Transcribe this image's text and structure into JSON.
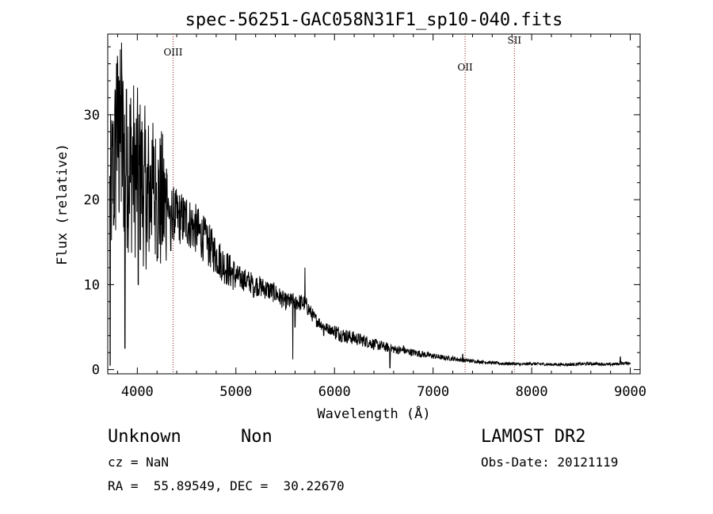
{
  "chart_data": {
    "type": "line",
    "title": "spec-56251-GAC058N31F1_sp10-040.fits",
    "xlabel": "Wavelength (Å)",
    "ylabel": "Flux (relative)",
    "xlim": [
      3700,
      9100
    ],
    "ylim": [
      -0.5,
      39.5
    ],
    "xticks": [
      4000,
      5000,
      6000,
      7000,
      8000,
      9000
    ],
    "yticks": [
      0,
      10,
      20,
      30
    ],
    "grid": false,
    "lines": [
      {
        "name": "OIII",
        "x": 4363,
        "label_y": 37
      },
      {
        "name": "OII",
        "x": 7325,
        "label_y": 35.2
      },
      {
        "name": "SII",
        "x": 7825,
        "label_y": 38.4
      }
    ],
    "continuum_knots": [
      [
        3720,
        20
      ],
      [
        3800,
        27
      ],
      [
        3900,
        25
      ],
      [
        4000,
        23
      ],
      [
        4100,
        21
      ],
      [
        4200,
        20
      ],
      [
        4300,
        19
      ],
      [
        4400,
        18
      ],
      [
        4500,
        17.5
      ],
      [
        4600,
        16.5
      ],
      [
        4700,
        15
      ],
      [
        4800,
        13.5
      ],
      [
        4900,
        12
      ],
      [
        5000,
        11
      ],
      [
        5100,
        10.5
      ],
      [
        5200,
        10
      ],
      [
        5300,
        9.5
      ],
      [
        5400,
        9
      ],
      [
        5500,
        8
      ],
      [
        5600,
        8
      ],
      [
        5700,
        7.8
      ],
      [
        5800,
        6
      ],
      [
        5900,
        5
      ],
      [
        6000,
        4.5
      ],
      [
        6100,
        4
      ],
      [
        6200,
        3.7
      ],
      [
        6300,
        3.4
      ],
      [
        6400,
        3
      ],
      [
        6500,
        2.7
      ],
      [
        6600,
        2.4
      ],
      [
        6700,
        2.2
      ],
      [
        6800,
        2.0
      ],
      [
        6900,
        1.8
      ],
      [
        7000,
        1.6
      ],
      [
        7100,
        1.4
      ],
      [
        7200,
        1.3
      ],
      [
        7300,
        1.1
      ],
      [
        7400,
        1.0
      ],
      [
        7500,
        0.9
      ],
      [
        7600,
        0.8
      ],
      [
        7700,
        0.7
      ],
      [
        7800,
        0.7
      ],
      [
        7900,
        0.6
      ],
      [
        8000,
        0.7
      ],
      [
        8200,
        0.6
      ],
      [
        8400,
        0.6
      ],
      [
        8600,
        0.7
      ],
      [
        8800,
        0.6
      ],
      [
        9000,
        0.8
      ]
    ],
    "spikes": [
      [
        3725,
        0.5
      ],
      [
        3760,
        17
      ],
      [
        3790,
        36
      ],
      [
        3820,
        34
      ],
      [
        3840,
        38.5
      ],
      [
        3875,
        2.5
      ],
      [
        3890,
        33
      ],
      [
        3930,
        22
      ],
      [
        3970,
        29
      ],
      [
        4010,
        10
      ],
      [
        4035,
        28
      ],
      [
        4070,
        24
      ],
      [
        4101,
        15
      ],
      [
        4150,
        27
      ],
      [
        4190,
        20
      ],
      [
        4300,
        23
      ],
      [
        4340,
        14
      ],
      [
        4500,
        20
      ],
      [
        4700,
        17
      ],
      [
        4861,
        11
      ],
      [
        5180,
        8.5
      ],
      [
        5577,
        1.2
      ],
      [
        5600,
        5
      ],
      [
        5700,
        12
      ],
      [
        5890,
        4
      ],
      [
        6563,
        0.2
      ],
      [
        6700,
        2.8
      ],
      [
        7300,
        1.8
      ],
      [
        8900,
        1.5
      ]
    ]
  },
  "info": {
    "object_class": "Unknown",
    "subclass": "Non",
    "survey": "LAMOST DR2",
    "cz": "cz = NaN",
    "obs_date": "Obs-Date: 20121119",
    "coords": "RA =  55.89549, DEC =  30.22670"
  }
}
